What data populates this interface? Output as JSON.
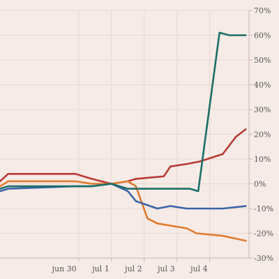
{
  "chart_data": {
    "type": "line",
    "title": "",
    "xlabel": "",
    "ylabel": "",
    "x_ticks": [
      "jun 30",
      "jul 1",
      "jul 2",
      "jul 3",
      "jul 4"
    ],
    "x_tick_positions": [
      30,
      31,
      32,
      33,
      34
    ],
    "xlim": [
      27.6,
      35.2
    ],
    "ylim": [
      -30,
      70
    ],
    "y_ticks": [
      -30,
      -20,
      -10,
      0,
      10,
      20,
      30,
      40,
      50,
      60,
      70
    ],
    "y_tick_labels": [
      "-30%",
      "-20%",
      "-10%",
      "0%",
      "10%",
      "20%",
      "30%",
      "40%",
      "50%",
      "60%",
      "70%"
    ],
    "y_axis_side": "right",
    "grid": true,
    "legend": "none",
    "series": [
      {
        "color": "#b83a35",
        "x": [
          27.6,
          27.85,
          29.9,
          30.4,
          31.0,
          31.5,
          31.75,
          32.6,
          32.8,
          33.3,
          33.7,
          34.4,
          34.8,
          35.1
        ],
        "y": [
          1,
          4,
          4,
          2,
          0,
          1,
          2,
          3,
          7,
          8,
          9,
          12,
          19,
          22
        ]
      },
      {
        "color": "#e07b2e",
        "x": [
          27.6,
          27.85,
          29.9,
          30.4,
          31.0,
          31.5,
          31.75,
          32.1,
          32.4,
          33.3,
          33.6,
          34.4,
          35.1
        ],
        "y": [
          -1,
          1,
          1,
          0,
          0,
          1,
          -1,
          -14,
          -16,
          -18,
          -20,
          -21,
          -23
        ]
      },
      {
        "color": "#3a65a8",
        "x": [
          27.6,
          27.85,
          29.9,
          30.4,
          31.0,
          31.5,
          31.75,
          32.4,
          32.8,
          33.3,
          33.6,
          34.4,
          35.1
        ],
        "y": [
          -3,
          -2,
          -1,
          -1,
          0,
          -3,
          -7,
          -10,
          -9,
          -10,
          -10,
          -10,
          -9
        ]
      },
      {
        "color": "#1b6e67",
        "x": [
          27.6,
          27.85,
          29.9,
          30.4,
          31.0,
          31.5,
          31.75,
          32.4,
          32.8,
          33.4,
          33.65,
          34.3,
          34.6,
          35.1
        ],
        "y": [
          -2,
          -1,
          -1,
          -1,
          0,
          -2,
          -2,
          -2,
          -2,
          -2,
          -3,
          61,
          60,
          60
        ]
      }
    ]
  }
}
